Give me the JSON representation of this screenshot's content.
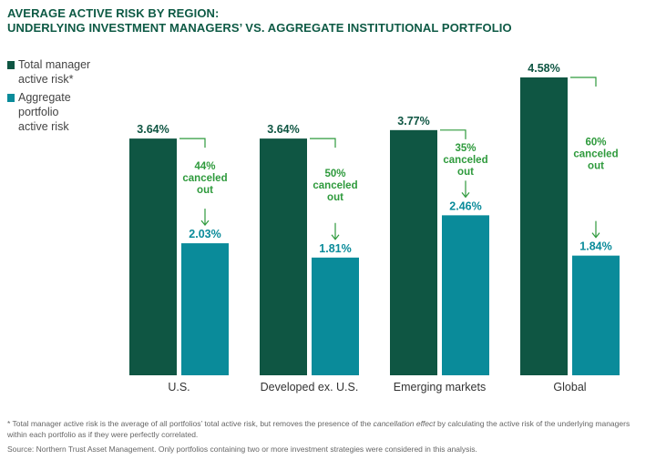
{
  "title": {
    "line1": "AVERAGE ACTIVE RISK BY REGION:",
    "line2": "UNDERLYING INVESTMENT MANAGERS’ VS. AGGREGATE INSTITUTIONAL PORTFOLIO"
  },
  "legend": {
    "items": [
      {
        "label": "Total manager active risk*",
        "color": "#0f5643"
      },
      {
        "label": "Aggregate portfolio active risk",
        "color": "#0a8b9a"
      }
    ]
  },
  "colors": {
    "total": "#0f5643",
    "aggregate": "#0a8b9a",
    "annotation": "#2e9a3c"
  },
  "chart_data": {
    "type": "bar",
    "categories": [
      "U.S.",
      "Developed ex. U.S.",
      "Emerging markets",
      "Global"
    ],
    "series": [
      {
        "name": "Total manager active risk*",
        "values": [
          3.64,
          3.64,
          3.77,
          4.58
        ],
        "labels": [
          "3.64%",
          "3.64%",
          "3.77%",
          "4.58%"
        ]
      },
      {
        "name": "Aggregate portfolio active risk",
        "values": [
          2.03,
          1.81,
          2.46,
          1.84
        ],
        "labels": [
          "2.03%",
          "1.81%",
          "2.46%",
          "1.84%"
        ]
      }
    ],
    "annotations": [
      [
        "44%",
        "canceled",
        "out"
      ],
      [
        "50%",
        "canceled",
        "out"
      ],
      [
        "35%",
        "canceled",
        "out"
      ],
      [
        "60%",
        "canceled",
        "out"
      ]
    ],
    "ylim": [
      0,
      4.58
    ],
    "grid": false,
    "legend_position": "top-left"
  },
  "footnote": {
    "part1": "* Total manager active risk is the average of all portfolios’ total active risk, but removes the presence of the ",
    "italic": "cancellation effect",
    "part2": " by calculating the active risk of the underlying managers within each portfolio as if they were perfectly correlated."
  },
  "source": "Source: Northern Trust Asset Management. Only portfolios containing two or more investment strategies were considered in this analysis."
}
